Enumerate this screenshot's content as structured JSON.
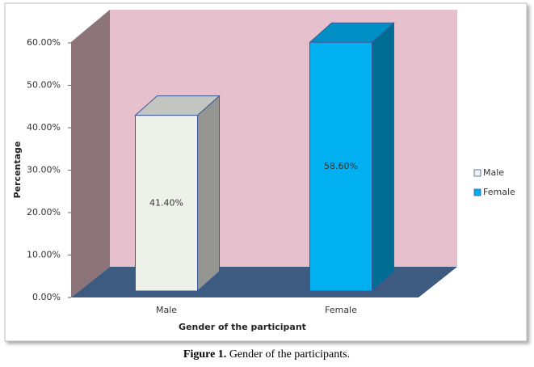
{
  "chart_data": {
    "type": "bar",
    "categories": [
      "Male",
      "Female"
    ],
    "values": [
      41.4,
      58.6
    ],
    "value_labels": [
      "41.40%",
      "58.60%"
    ],
    "colors": [
      "#eef0ea",
      "#00b0f0"
    ],
    "ylim": [
      0,
      60
    ],
    "yticks": [
      {
        "value": 0,
        "label": "0.00%"
      },
      {
        "value": 10,
        "label": "10.00%"
      },
      {
        "value": 20,
        "label": "20.00%"
      },
      {
        "value": 30,
        "label": "30.00%"
      },
      {
        "value": 40,
        "label": "40.00%"
      },
      {
        "value": 50,
        "label": "50.00%"
      },
      {
        "value": 60,
        "label": "60.00%"
      }
    ],
    "x_label": "Gender of the participant",
    "y_label": "Percentage",
    "legend": "right",
    "caption_label": "Figure 1.",
    "caption": "Gender of the participants."
  }
}
